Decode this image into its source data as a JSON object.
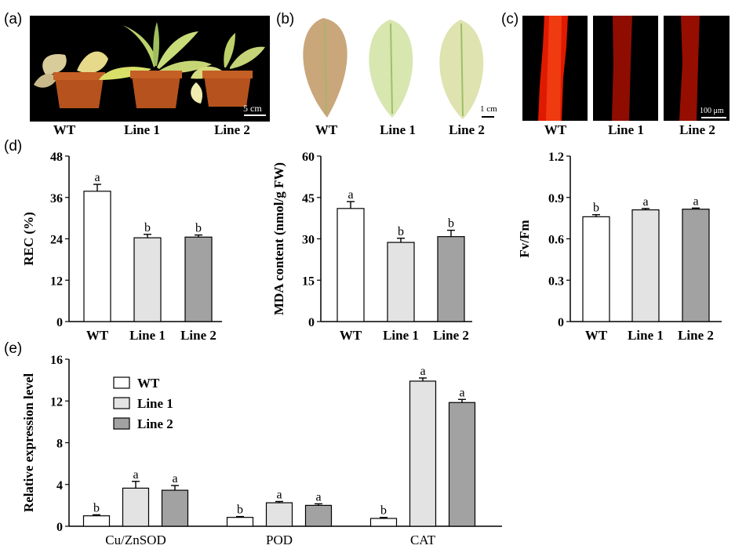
{
  "panels": {
    "a": {
      "label": "(a)",
      "scale": "5 cm",
      "captions": [
        "WT",
        "Line 1",
        "Line 2"
      ]
    },
    "b": {
      "label": "(b)",
      "scale": "1 cm",
      "captions": [
        "WT",
        "Line 1",
        "Line 2"
      ]
    },
    "c": {
      "label": "(c)",
      "scale": "100 μm",
      "captions": [
        "WT",
        "Line 1",
        "Line 2"
      ]
    },
    "d": {
      "label": "(d)"
    },
    "e": {
      "label": "(e)"
    }
  },
  "colors": {
    "WT": "#ffffff",
    "Line 1": "#e3e3e3",
    "Line 2": "#a2a2a2",
    "photo_bg": "#000000",
    "fluorescence": "#e01a00"
  },
  "chart_data": [
    {
      "type": "bar",
      "categories": [
        "WT",
        "Line 1",
        "Line 2"
      ],
      "values": [
        37.8,
        24.3,
        24.5
      ],
      "errors": [
        2.0,
        1.0,
        0.6
      ],
      "letters": [
        "a",
        "b",
        "b"
      ],
      "ylabel": "REC (%)",
      "yticks": [
        "0",
        "12",
        "24",
        "36",
        "48"
      ],
      "ylim": [
        0,
        48
      ]
    },
    {
      "type": "bar",
      "categories": [
        "WT",
        "Line 1",
        "Line 2"
      ],
      "values": [
        41.0,
        28.7,
        30.8
      ],
      "errors": [
        2.5,
        1.5,
        2.3
      ],
      "letters": [
        "a",
        "b",
        "b"
      ],
      "ylabel": "MDA content (nmol/g FW)",
      "yticks": [
        "0",
        "15",
        "30",
        "45",
        "60"
      ],
      "ylim": [
        0,
        60
      ]
    },
    {
      "type": "bar",
      "categories": [
        "WT",
        "Line 1",
        "Line 2"
      ],
      "values": [
        0.76,
        0.81,
        0.815
      ],
      "errors": [
        0.015,
        0.01,
        0.008
      ],
      "letters": [
        "b",
        "a",
        "a"
      ],
      "ylabel": "Fv/Fm",
      "yticks": [
        "0",
        "0.3",
        "0.6",
        "0.9",
        "1.2"
      ],
      "ylim": [
        0,
        1.2
      ]
    },
    {
      "type": "bar",
      "categories": [
        "Cu/ZnSOD",
        "POD",
        "CAT"
      ],
      "series": [
        {
          "name": "WT",
          "values": [
            1.0,
            0.85,
            0.75
          ],
          "errors": [
            0.1,
            0.08,
            0.1
          ],
          "letters": [
            "b",
            "b",
            "b"
          ]
        },
        {
          "name": "Line 1",
          "values": [
            3.65,
            2.25,
            13.9
          ],
          "errors": [
            0.65,
            0.12,
            0.3
          ],
          "letters": [
            "a",
            "a",
            "a"
          ]
        },
        {
          "name": "Line 2",
          "values": [
            3.45,
            2.0,
            11.85
          ],
          "errors": [
            0.45,
            0.15,
            0.3
          ],
          "letters": [
            "a",
            "a",
            "a"
          ]
        }
      ],
      "ylabel": "Relative expression level",
      "yticks": [
        "0",
        "4",
        "8",
        "12",
        "16"
      ],
      "ylim": [
        0,
        16
      ],
      "legend": "top-left"
    }
  ]
}
